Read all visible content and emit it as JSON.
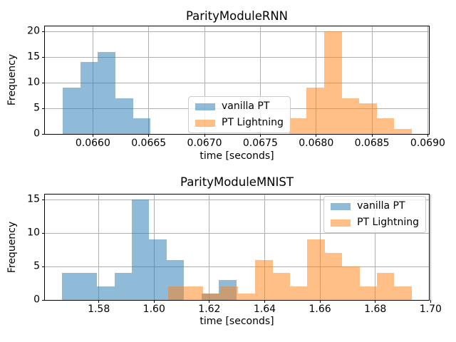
{
  "figure": {
    "background": "#ffffff",
    "accent_blue": "#1f77b4",
    "accent_orange": "#ff7f0e",
    "blue_on_white": "#8fbbda",
    "orange_on_white": "#ffbf86",
    "overlap_brown": "#c79d74",
    "grid_color": "#b0b0b0"
  },
  "chart_data": [
    {
      "type": "histogram",
      "title": "ParityModuleRNN",
      "xlabel": "time [seconds]",
      "ylabel": "Frequency",
      "xlim": [
        0.06557,
        0.06901
      ],
      "ylim": [
        0,
        21
      ],
      "grid": true,
      "legend_position": "center",
      "xticks": [
        {
          "value": 0.066,
          "label": "0.0660"
        },
        {
          "value": 0.0665,
          "label": "0.0665"
        },
        {
          "value": 0.067,
          "label": "0.0670"
        },
        {
          "value": 0.0675,
          "label": "0.0675"
        },
        {
          "value": 0.068,
          "label": "0.0680"
        },
        {
          "value": 0.0685,
          "label": "0.0685"
        },
        {
          "value": 0.069,
          "label": "0.0690"
        }
      ],
      "yticks": [
        {
          "value": 0,
          "label": "0"
        },
        {
          "value": 5,
          "label": "5"
        },
        {
          "value": 10,
          "label": "10"
        },
        {
          "value": 15,
          "label": "15"
        },
        {
          "value": 20,
          "label": "20"
        }
      ],
      "series": [
        {
          "name": "vanilla PT",
          "color": "rgba(31,119,180,0.5)",
          "bin_start": 0.065731,
          "bin_width": 0.000157,
          "counts": [
            9,
            14,
            16,
            7,
            3
          ]
        },
        {
          "name": "PT Lightning",
          "color": "rgba(255,127,14,0.5)",
          "bin_start": 0.067758,
          "bin_width": 0.000157,
          "counts": [
            3,
            9,
            20,
            7,
            6,
            3,
            1
          ]
        }
      ]
    },
    {
      "type": "histogram",
      "title": "ParityModuleMNIST",
      "xlabel": "time [seconds]",
      "ylabel": "Frequency",
      "xlim": [
        1.5605,
        1.6994
      ],
      "ylim": [
        0,
        15.75
      ],
      "grid": true,
      "legend_position": "upper right",
      "xticks": [
        {
          "value": 1.58,
          "label": "1.58"
        },
        {
          "value": 1.6,
          "label": "1.60"
        },
        {
          "value": 1.62,
          "label": "1.62"
        },
        {
          "value": 1.64,
          "label": "1.64"
        },
        {
          "value": 1.66,
          "label": "1.66"
        },
        {
          "value": 1.68,
          "label": "1.68"
        },
        {
          "value": 1.7,
          "label": "1.70"
        }
      ],
      "yticks": [
        {
          "value": 0,
          "label": "0"
        },
        {
          "value": 5,
          "label": "5"
        },
        {
          "value": 10,
          "label": "10"
        },
        {
          "value": 15,
          "label": "15"
        }
      ],
      "series": [
        {
          "name": "vanilla PT",
          "color": "rgba(31,119,180,0.5)",
          "bin_start": 1.5668,
          "bin_width": 0.00629,
          "counts": [
            4,
            4,
            2,
            4,
            15,
            9,
            6,
            0,
            1,
            3
          ]
        },
        {
          "name": "PT Lightning",
          "color": "rgba(255,127,14,0.5)",
          "bin_start": 1.6051,
          "bin_width": 0.00629,
          "counts": [
            2,
            2,
            1,
            2,
            1,
            6,
            4,
            2,
            9,
            7,
            5,
            2,
            4,
            2
          ]
        }
      ]
    }
  ]
}
